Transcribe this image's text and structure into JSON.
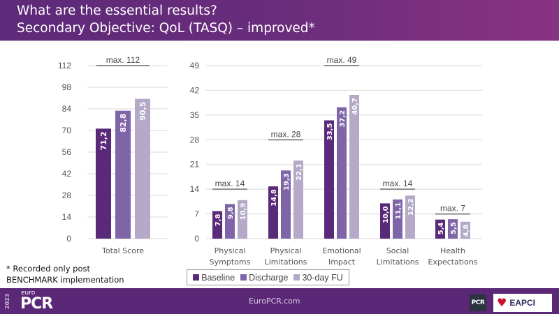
{
  "header": {
    "title_line1": "What are the essential results?",
    "title_line2": "Secondary Objective: QoL (TASQ) – improved*"
  },
  "footnote": {
    "line1": "* Recorded only post",
    "line2": "BENCHMARK implementation"
  },
  "legend": [
    {
      "label": "Baseline",
      "color": "#5a2a7a"
    },
    {
      "label": "Discharge",
      "color": "#8064a8"
    },
    {
      "label": "30-day FU",
      "color": "#b4aac8"
    }
  ],
  "footer": {
    "year": "2023",
    "brand_prefix": "euro",
    "brand": "PCR",
    "website": "EuroPCR.com",
    "badge_pcr": "PCR",
    "badge_eapci": "EAPCI"
  },
  "chart_data": [
    {
      "type": "bar",
      "title": "",
      "categories": [
        "Total Score"
      ],
      "series": [
        {
          "name": "Baseline",
          "values": [
            71.2
          ],
          "labels": [
            "71,2"
          ]
        },
        {
          "name": "Discharge",
          "values": [
            82.8
          ],
          "labels": [
            "82,8"
          ]
        },
        {
          "name": "30-day FU",
          "values": [
            90.5
          ],
          "labels": [
            "90,5"
          ]
        }
      ],
      "max_annotations": [
        {
          "category": "Total Score",
          "max": 112,
          "label": "max. 112"
        }
      ],
      "ylim": [
        0,
        112
      ],
      "yticks": [
        0,
        14,
        28,
        42,
        56,
        70,
        84,
        98,
        112
      ],
      "xlabel": "",
      "ylabel": "",
      "grid": true
    },
    {
      "type": "bar",
      "title": "",
      "categories": [
        "Physical Symptoms",
        "Physical Limitations",
        "Emotional Impact",
        "Social Limitations",
        "Health Expectations"
      ],
      "category_lines": [
        [
          "Physical",
          "Symptoms"
        ],
        [
          "Physical",
          "Limitations"
        ],
        [
          "Emotional",
          "Impact"
        ],
        [
          "Social",
          "Limitations"
        ],
        [
          "Health",
          "Expectations"
        ]
      ],
      "series": [
        {
          "name": "Baseline",
          "values": [
            7.8,
            14.8,
            33.5,
            10.0,
            5.4
          ],
          "labels": [
            "7,8",
            "14,8",
            "33,5",
            "10,0",
            "5,4"
          ]
        },
        {
          "name": "Discharge",
          "values": [
            9.8,
            19.3,
            37.2,
            11.1,
            5.5
          ],
          "labels": [
            "9,8",
            "19,3",
            "37,2",
            "11,1",
            "5,5"
          ]
        },
        {
          "name": "30-day FU",
          "values": [
            10.9,
            22.1,
            40.7,
            12.2,
            4.8
          ],
          "labels": [
            "10,9",
            "22,1",
            "40,7",
            "12,2",
            "4,8"
          ]
        }
      ],
      "max_annotations": [
        {
          "category": "Physical Symptoms",
          "max": 14,
          "label": "max. 14"
        },
        {
          "category": "Physical Limitations",
          "max": 28,
          "label": "max. 28"
        },
        {
          "category": "Emotional Impact",
          "max": 49,
          "label": "max. 49"
        },
        {
          "category": "Social Limitations",
          "max": 14,
          "label": "max. 14"
        },
        {
          "category": "Health Expectations",
          "max": 7,
          "label": "max. 7"
        }
      ],
      "ylim": [
        0,
        49
      ],
      "yticks": [
        0,
        7,
        14,
        21,
        28,
        35,
        42,
        49
      ],
      "xlabel": "",
      "ylabel": "",
      "grid": true,
      "legend_position": "bottom"
    }
  ]
}
